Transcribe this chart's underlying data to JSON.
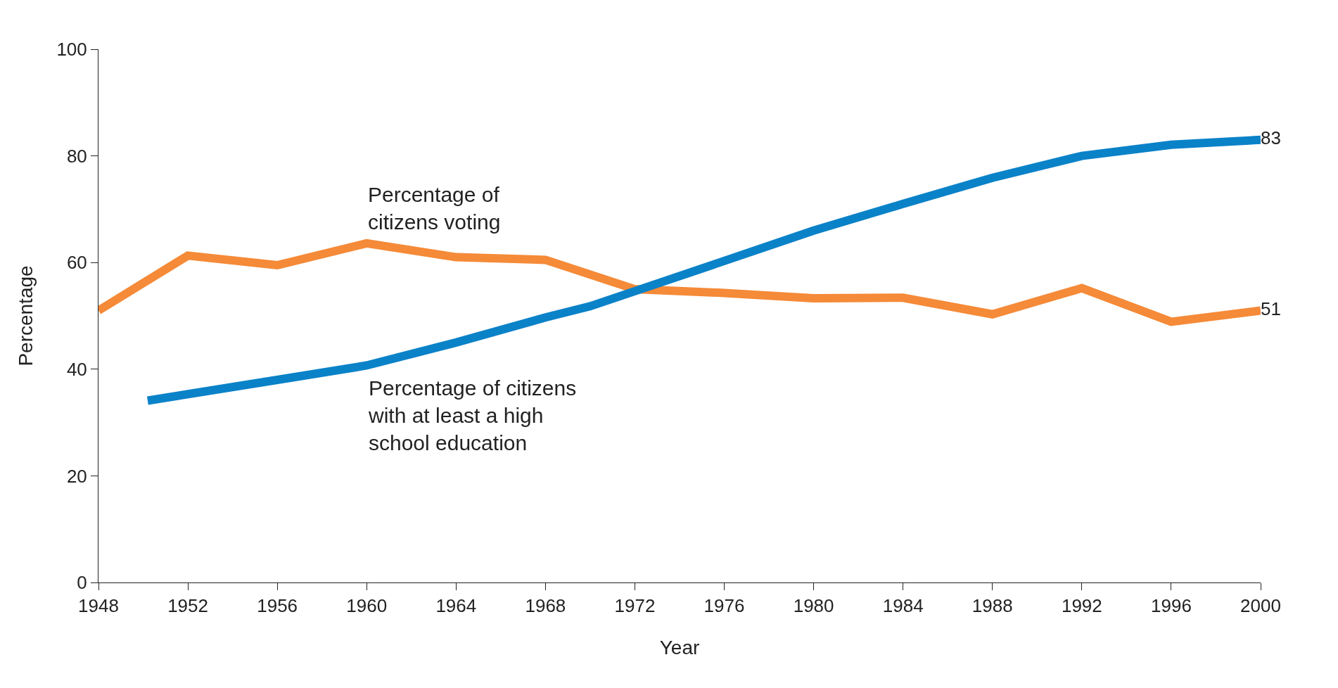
{
  "chart_data": {
    "type": "line",
    "xlabel": "Year",
    "ylabel": "Percentage",
    "xlim": [
      1948,
      2000
    ],
    "xticks": [
      1948,
      1952,
      1956,
      1960,
      1964,
      1968,
      1972,
      1976,
      1980,
      1984,
      1988,
      1992,
      1996,
      2000
    ],
    "ylim": [
      0,
      100
    ],
    "yticks": [
      0,
      20,
      40,
      60,
      80,
      100
    ],
    "marker": "none",
    "line_style": "solid",
    "series": [
      {
        "name": "Percentage of citizens voting",
        "color": "#f58a38",
        "x": [
          1948,
          1952,
          1956,
          1960,
          1964,
          1968,
          1972,
          1976,
          1980,
          1984,
          1988,
          1992,
          1996,
          2000
        ],
        "values": [
          51,
          61.3,
          59.5,
          63.6,
          61,
          60.5,
          55,
          54.3,
          53.3,
          53.4,
          50.3,
          55.2,
          48.9,
          51
        ],
        "value_labels": [
          null,
          null,
          null,
          null,
          null,
          null,
          null,
          null,
          null,
          null,
          null,
          null,
          null,
          "51"
        ]
      },
      {
        "name": "Percentage of citizens with at least a high school education",
        "color": "#0a82c8",
        "x": [
          1950.2,
          1956,
          1960,
          1964,
          1968,
          1970,
          1976,
          1980,
          1984,
          1988,
          1992,
          1996,
          2000
        ],
        "values": [
          34.1,
          38,
          40.7,
          45,
          49.7,
          51.8,
          60.3,
          66,
          71,
          75.9,
          80,
          82.1,
          83
        ],
        "value_labels": [
          null,
          null,
          null,
          null,
          null,
          null,
          null,
          null,
          null,
          null,
          null,
          null,
          "83"
        ]
      }
    ]
  }
}
